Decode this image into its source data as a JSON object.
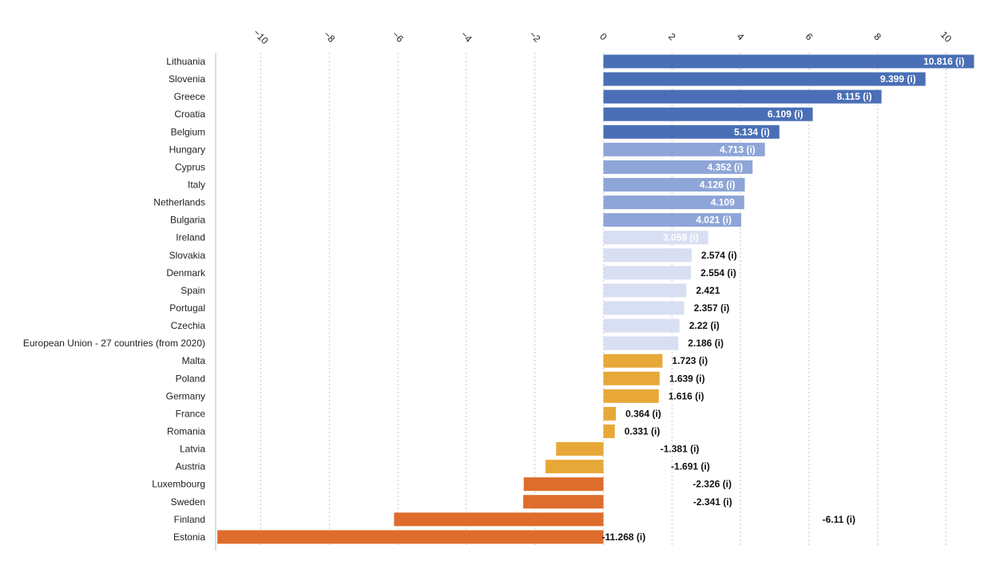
{
  "chart_data": {
    "type": "bar",
    "orientation": "horizontal",
    "title": "",
    "xlabel": "",
    "ylabel": "",
    "xlim": [
      -11.3,
      10.9
    ],
    "xticks": [
      -10,
      -8,
      -6,
      -4,
      -2,
      0,
      2,
      4,
      6,
      8,
      10
    ],
    "xtick_labels": [
      "−10",
      "−8",
      "−6",
      "−4",
      "−2",
      "0",
      "2",
      "4",
      "6",
      "8",
      "10"
    ],
    "grid": true,
    "categories": [
      "Lithuania",
      "Slovenia",
      "Greece",
      "Croatia",
      "Belgium",
      "Hungary",
      "Cyprus",
      "Italy",
      "Netherlands",
      "Bulgaria",
      "Ireland",
      "Slovakia",
      "Denmark",
      "Spain",
      "Portugal",
      "Czechia",
      "European Union - 27 countries (from 2020)",
      "Malta",
      "Poland",
      "Germany",
      "France",
      "Romania",
      "Latvia",
      "Austria",
      "Luxembourg",
      "Sweden",
      "Finland",
      "Estonia"
    ],
    "values": [
      10.816,
      9.399,
      8.115,
      6.109,
      5.134,
      4.713,
      4.352,
      4.126,
      4.109,
      4.021,
      3.059,
      2.574,
      2.554,
      2.421,
      2.357,
      2.22,
      2.186,
      1.723,
      1.639,
      1.616,
      0.364,
      0.331,
      -1.381,
      -1.691,
      -2.326,
      -2.341,
      -6.11,
      -11.268
    ],
    "value_labels": [
      "10.816 (i)",
      "9.399 (i)",
      "8.115 (i)",
      "6.109 (i)",
      "5.134 (i)",
      "4.713 (i)",
      "4.352 (i)",
      "4.126 (i)",
      "4.109",
      "4.021 (i)",
      "3.059 (i)",
      "2.574 (i)",
      "2.554 (i)",
      "2.421",
      "2.357 (i)",
      "2.22 (i)",
      "2.186 (i)",
      "1.723 (i)",
      "1.639 (i)",
      "1.616 (i)",
      "0.364 (i)",
      "0.331 (i)",
      "-1.381 (i)",
      "-1.691 (i)",
      "-2.326 (i)",
      "-2.341 (i)",
      "-6.11 (i)",
      "-11.268 (i)"
    ],
    "color_groups": [
      "dark-blue",
      "dark-blue",
      "dark-blue",
      "dark-blue",
      "dark-blue",
      "mid-blue",
      "mid-blue",
      "mid-blue",
      "mid-blue",
      "mid-blue",
      "light-blue",
      "light-blue",
      "light-blue",
      "light-blue",
      "light-blue",
      "light-blue",
      "light-blue",
      "yellow",
      "yellow",
      "yellow",
      "yellow",
      "yellow",
      "yellow",
      "yellow",
      "orange",
      "orange",
      "orange",
      "orange"
    ],
    "colors": {
      "dark-blue": "#4a6fb6",
      "mid-blue": "#8ea5d8",
      "light-blue": "#d9dff2",
      "yellow": "#e8a838",
      "orange": "#de6c2c"
    },
    "label_colors": {
      "inside": "#ffffff",
      "outside": "#111111"
    }
  }
}
